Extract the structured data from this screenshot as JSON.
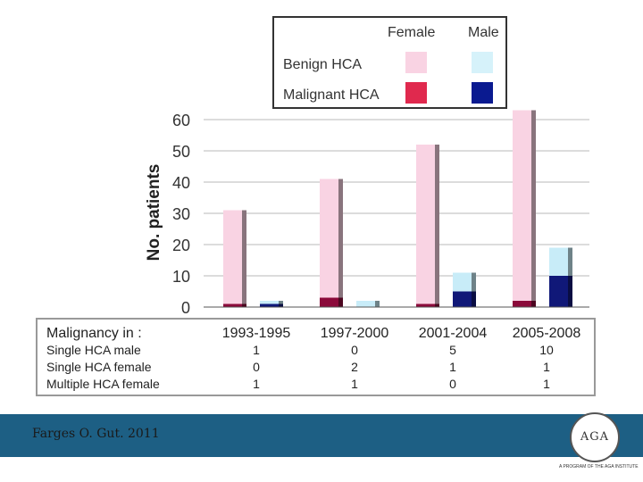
{
  "chart_data": {
    "type": "bar",
    "ylabel": "No. patients",
    "ylim": [
      0,
      60
    ],
    "yticks": [
      0,
      10,
      20,
      30,
      40,
      50,
      60
    ],
    "categories": [
      "1993-1995",
      "1997-2000",
      "2001-2004",
      "2005-2008"
    ],
    "series": [
      {
        "name": "Female - Benign HCA",
        "values": [
          30,
          38,
          51,
          61
        ]
      },
      {
        "name": "Female - Malignant HCA",
        "values": [
          1,
          3,
          1,
          2
        ]
      },
      {
        "name": "Male - Benign HCA",
        "values": [
          1,
          2,
          6,
          9
        ]
      },
      {
        "name": "Male - Malignant HCA",
        "values": [
          1,
          0,
          5,
          10
        ]
      }
    ],
    "grid": true,
    "colors": {
      "female_benign": "#f9d3e3",
      "female_malignant": "#8b0a3a",
      "male_benign": "#c8ecf8",
      "male_malignant": "#101878"
    }
  },
  "legend": {
    "col_female": "Female",
    "col_male": "Male",
    "row_benign": "Benign HCA",
    "row_malignant": "Malignant HCA",
    "swatch_colors": {
      "female_benign": "#f9d3e3",
      "male_benign": "#d6f2fa",
      "female_malignant": "#e0294e",
      "male_malignant": "#0a1a90"
    }
  },
  "table": {
    "header": "Malignancy in :",
    "columns": [
      "1993-1995",
      "1997-2000",
      "2001-2004",
      "2005-2008"
    ],
    "rows": [
      {
        "label": "Single HCA male",
        "values": [
          "1",
          "0",
          "5",
          "10"
        ]
      },
      {
        "label": "Single HCA female",
        "values": [
          "0",
          "2",
          "1",
          "1"
        ]
      },
      {
        "label": "Multiple HCA female",
        "values": [
          "1",
          "1",
          "0",
          "1"
        ]
      }
    ]
  },
  "footer": {
    "citation": "Farges O. Gut. 2011",
    "seal_letters": "AGA",
    "institute": "A PROGRAM OF THE AGA INSTITUTE"
  }
}
